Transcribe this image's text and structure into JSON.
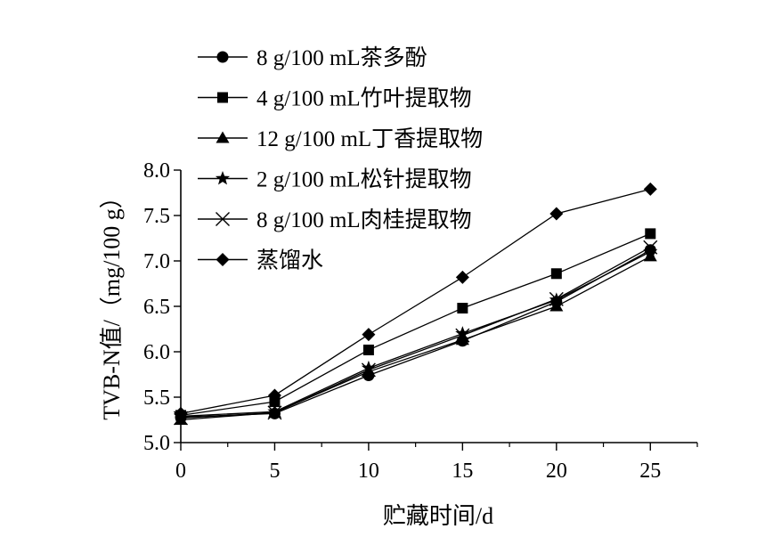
{
  "chart_data": {
    "type": "line",
    "xlabel": "贮藏时间/d",
    "ylabel": "TVB-N值/（mg/100 g）",
    "x": [
      0,
      5,
      10,
      15,
      20,
      25
    ],
    "xlim": [
      0,
      27.5
    ],
    "ylim": [
      5.0,
      8.0
    ],
    "x_ticks": [
      0,
      5,
      10,
      15,
      20,
      25
    ],
    "y_ticks": [
      "5.0",
      "5.5",
      "6.0",
      "6.5",
      "7.0",
      "7.5",
      "8.0"
    ],
    "grid": false,
    "legend": "top-left",
    "color": "#000000",
    "series": [
      {
        "name": "8 g/100 mL茶多酚",
        "marker": "circle",
        "values": [
          5.28,
          5.32,
          5.74,
          6.12,
          6.55,
          7.12
        ]
      },
      {
        "name": "4 g/100 mL竹叶提取物",
        "marker": "square",
        "values": [
          5.3,
          5.45,
          6.02,
          6.48,
          6.86,
          7.3
        ]
      },
      {
        "name": "12 g/100 mL丁香提取物",
        "marker": "triangle",
        "values": [
          5.25,
          5.33,
          5.78,
          6.13,
          6.5,
          7.05
        ]
      },
      {
        "name": "2 g/100 mL松针提取物",
        "marker": "star",
        "values": [
          5.29,
          5.34,
          5.82,
          6.2,
          6.57,
          7.1
        ]
      },
      {
        "name": "8 g/100 mL肉桂提取物",
        "marker": "cross",
        "values": [
          5.27,
          5.33,
          5.8,
          6.18,
          6.58,
          7.15
        ]
      },
      {
        "name": "蒸馏水",
        "marker": "diamond",
        "values": [
          5.32,
          5.52,
          6.19,
          6.82,
          7.52,
          7.79
        ]
      }
    ]
  }
}
